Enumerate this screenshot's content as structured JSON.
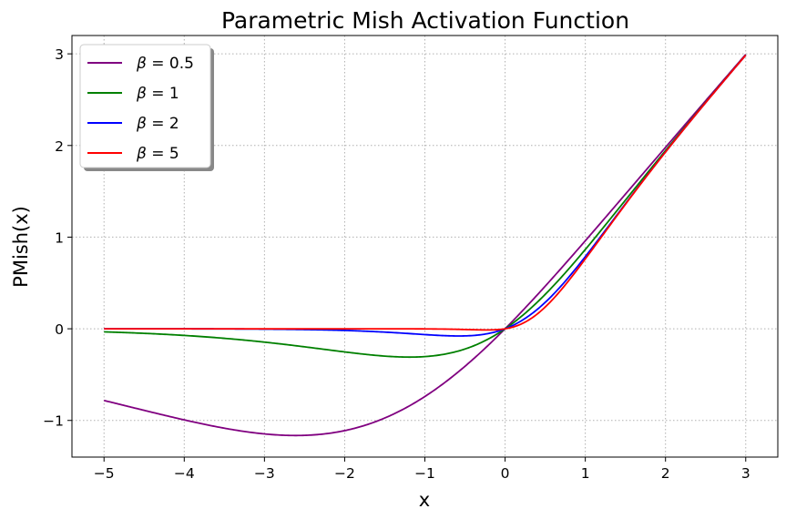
{
  "chart_data": {
    "type": "line",
    "title": "Parametric Mish Activation Function",
    "xlabel": "x",
    "ylabel": "PMish(x)",
    "xlim": [
      -5.4,
      3.4
    ],
    "ylim": [
      -1.4,
      3.2
    ],
    "x_ticks": [
      -5,
      -4,
      -3,
      -2,
      -1,
      0,
      1,
      2,
      3
    ],
    "y_ticks": [
      -1,
      0,
      1,
      2,
      3
    ],
    "x_tick_labels": [
      "−5",
      "−4",
      "−3",
      "−2",
      "−1",
      "0",
      "1",
      "2",
      "3"
    ],
    "y_tick_labels": [
      "−1",
      "0",
      "1",
      "2",
      "3"
    ],
    "x_range": [
      -5,
      3
    ],
    "grid": true,
    "legend_position": "top-left",
    "series": [
      {
        "name": "= 0.5",
        "beta": 0.5,
        "color": "#800080"
      },
      {
        "name": "= 1",
        "beta": 1,
        "color": "#008000"
      },
      {
        "name": "= 2",
        "beta": 2,
        "color": "#0000ff"
      },
      {
        "name": "= 5",
        "beta": 5,
        "color": "#ff0000"
      }
    ],
    "legend_symbol": "β"
  }
}
